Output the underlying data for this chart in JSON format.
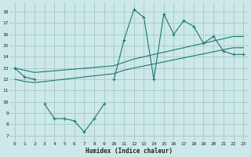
{
  "background_color": "#cce8e8",
  "grid_color": "#aacccc",
  "line_color": "#1a7a6e",
  "xlabel": "Humidex (Indice chaleur)",
  "xlim": [
    -0.5,
    23.5
  ],
  "ylim": [
    6.5,
    18.8
  ],
  "xticks": [
    0,
    1,
    2,
    3,
    4,
    5,
    6,
    7,
    8,
    9,
    10,
    11,
    12,
    13,
    14,
    15,
    16,
    17,
    18,
    19,
    20,
    21,
    22,
    23
  ],
  "yticks": [
    7,
    8,
    9,
    10,
    11,
    12,
    13,
    14,
    15,
    16,
    17,
    18
  ],
  "line1_x": [
    0,
    1,
    2,
    10,
    11,
    12,
    13,
    14,
    15,
    16,
    17,
    18,
    19,
    20,
    21,
    22,
    23
  ],
  "line1_y": [
    13.0,
    12.2,
    12.0,
    12.0,
    15.5,
    18.2,
    17.5,
    12.0,
    17.8,
    16.0,
    17.2,
    16.7,
    15.2,
    15.8,
    14.5,
    14.2,
    14.2
  ],
  "line2_x": [
    0,
    1,
    2,
    10,
    11,
    12,
    22,
    23
  ],
  "line2_y": [
    13.0,
    12.8,
    12.6,
    13.2,
    13.5,
    13.8,
    15.8,
    15.8
  ],
  "line3_x": [
    0,
    1,
    2,
    10,
    11,
    12,
    22,
    23
  ],
  "line3_y": [
    12.0,
    11.8,
    11.7,
    12.5,
    12.8,
    13.0,
    14.8,
    14.8
  ],
  "line4_x": [
    3,
    4,
    5,
    6,
    7,
    8,
    9
  ],
  "line4_y": [
    9.8,
    8.5,
    8.5,
    8.3,
    7.3,
    8.5,
    9.8
  ]
}
